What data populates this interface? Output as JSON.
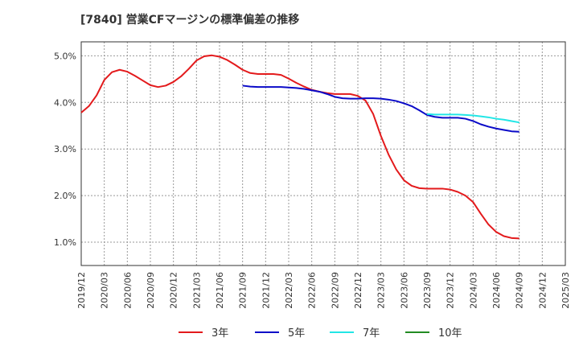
{
  "chart_data": {
    "type": "line",
    "title": "[7840]  営業CFマージンの標準偏差の推移",
    "xlabel": "",
    "ylabel": "",
    "x": [
      "2019/12",
      "2020/03",
      "2020/06",
      "2020/09",
      "2020/12",
      "2021/03",
      "2021/06",
      "2021/09",
      "2021/12",
      "2022/03",
      "2022/06",
      "2022/09",
      "2022/12",
      "2023/03",
      "2023/06",
      "2023/09",
      "2023/12",
      "2024/03",
      "2024/06",
      "2024/09",
      "2024/12",
      "2025/03"
    ],
    "x_range": [
      "2019/12",
      "2025/03"
    ],
    "yticks": [
      "1.0%",
      "2.0%",
      "3.0%",
      "4.0%",
      "5.0%"
    ],
    "ylim": [
      0.5,
      5.3
    ],
    "grid": true,
    "legend_position": "bottom",
    "series": [
      {
        "name": "3年",
        "color": "#e31a1c",
        "points": [
          [
            "2019/12",
            3.78
          ],
          [
            "2020/01",
            3.92
          ],
          [
            "2020/02",
            4.15
          ],
          [
            "2020/03",
            4.48
          ],
          [
            "2020/04",
            4.65
          ],
          [
            "2020/05",
            4.7
          ],
          [
            "2020/06",
            4.66
          ],
          [
            "2020/07",
            4.57
          ],
          [
            "2020/08",
            4.47
          ],
          [
            "2020/09",
            4.37
          ],
          [
            "2020/10",
            4.33
          ],
          [
            "2020/11",
            4.36
          ],
          [
            "2020/12",
            4.44
          ],
          [
            "2021/01",
            4.56
          ],
          [
            "2021/02",
            4.72
          ],
          [
            "2021/03",
            4.9
          ],
          [
            "2021/04",
            4.99
          ],
          [
            "2021/05",
            5.01
          ],
          [
            "2021/06",
            4.98
          ],
          [
            "2021/07",
            4.91
          ],
          [
            "2021/08",
            4.81
          ],
          [
            "2021/09",
            4.7
          ],
          [
            "2021/10",
            4.63
          ],
          [
            "2021/11",
            4.61
          ],
          [
            "2021/12",
            4.61
          ],
          [
            "2022/01",
            4.61
          ],
          [
            "2022/02",
            4.59
          ],
          [
            "2022/03",
            4.51
          ],
          [
            "2022/04",
            4.42
          ],
          [
            "2022/05",
            4.34
          ],
          [
            "2022/06",
            4.27
          ],
          [
            "2022/07",
            4.23
          ],
          [
            "2022/08",
            4.2
          ],
          [
            "2022/09",
            4.18
          ],
          [
            "2022/10",
            4.18
          ],
          [
            "2022/11",
            4.18
          ],
          [
            "2022/12",
            4.14
          ],
          [
            "2023/01",
            4.04
          ],
          [
            "2023/02",
            3.75
          ],
          [
            "2023/03",
            3.28
          ],
          [
            "2023/04",
            2.88
          ],
          [
            "2023/05",
            2.56
          ],
          [
            "2023/06",
            2.33
          ],
          [
            "2023/07",
            2.21
          ],
          [
            "2023/08",
            2.16
          ],
          [
            "2023/09",
            2.15
          ],
          [
            "2023/10",
            2.15
          ],
          [
            "2023/11",
            2.15
          ],
          [
            "2023/12",
            2.13
          ],
          [
            "2024/01",
            2.08
          ],
          [
            "2024/02",
            2.0
          ],
          [
            "2024/03",
            1.86
          ],
          [
            "2024/04",
            1.61
          ],
          [
            "2024/05",
            1.38
          ],
          [
            "2024/06",
            1.22
          ],
          [
            "2024/07",
            1.13
          ],
          [
            "2024/08",
            1.09
          ],
          [
            "2024/09",
            1.08
          ]
        ]
      },
      {
        "name": "5年",
        "color": "#0a0ac8",
        "points": [
          [
            "2021/09",
            4.36
          ],
          [
            "2021/10",
            4.34
          ],
          [
            "2021/11",
            4.33
          ],
          [
            "2021/12",
            4.33
          ],
          [
            "2022/01",
            4.33
          ],
          [
            "2022/02",
            4.33
          ],
          [
            "2022/03",
            4.32
          ],
          [
            "2022/04",
            4.31
          ],
          [
            "2022/05",
            4.29
          ],
          [
            "2022/06",
            4.26
          ],
          [
            "2022/07",
            4.23
          ],
          [
            "2022/08",
            4.18
          ],
          [
            "2022/09",
            4.12
          ],
          [
            "2022/10",
            4.09
          ],
          [
            "2022/11",
            4.08
          ],
          [
            "2022/12",
            4.08
          ],
          [
            "2023/01",
            4.09
          ],
          [
            "2023/02",
            4.09
          ],
          [
            "2023/03",
            4.08
          ],
          [
            "2023/04",
            4.06
          ],
          [
            "2023/05",
            4.03
          ],
          [
            "2023/06",
            3.98
          ],
          [
            "2023/07",
            3.92
          ],
          [
            "2023/08",
            3.83
          ],
          [
            "2023/09",
            3.73
          ],
          [
            "2023/10",
            3.69
          ],
          [
            "2023/11",
            3.67
          ],
          [
            "2023/12",
            3.67
          ],
          [
            "2024/01",
            3.67
          ],
          [
            "2024/02",
            3.65
          ],
          [
            "2024/03",
            3.6
          ],
          [
            "2024/04",
            3.53
          ],
          [
            "2024/05",
            3.48
          ],
          [
            "2024/06",
            3.44
          ],
          [
            "2024/07",
            3.41
          ],
          [
            "2024/08",
            3.38
          ],
          [
            "2024/09",
            3.37
          ]
        ]
      },
      {
        "name": "7年",
        "color": "#22e6e6",
        "points": [
          [
            "2023/09",
            3.75
          ],
          [
            "2023/10",
            3.74
          ],
          [
            "2023/11",
            3.74
          ],
          [
            "2023/12",
            3.74
          ],
          [
            "2024/01",
            3.74
          ],
          [
            "2024/02",
            3.73
          ],
          [
            "2024/03",
            3.72
          ],
          [
            "2024/04",
            3.7
          ],
          [
            "2024/05",
            3.68
          ],
          [
            "2024/06",
            3.65
          ],
          [
            "2024/07",
            3.63
          ],
          [
            "2024/08",
            3.6
          ],
          [
            "2024/09",
            3.57
          ]
        ]
      },
      {
        "name": "10年",
        "color": "#228b22",
        "points": []
      }
    ]
  }
}
